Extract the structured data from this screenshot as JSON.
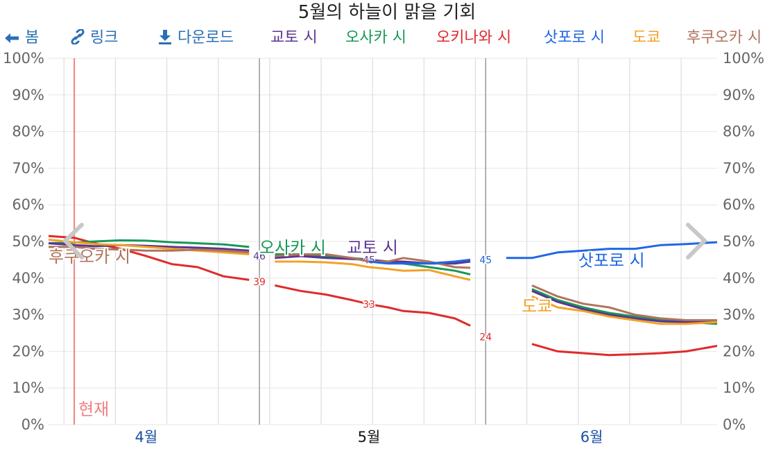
{
  "title": "5월의 하늘이 맑을 기회",
  "legend": {
    "back": "봄",
    "link": "링크",
    "download": "다운로드",
    "cities": [
      "교토 시",
      "오사카 시",
      "오키나와 시",
      "삿포로 시",
      "도쿄",
      "후쿠오카 시"
    ]
  },
  "current_label": "현재",
  "icons": {
    "back": "arrow-left-icon",
    "link": "link-icon",
    "download": "download-icon",
    "prev": "chevron-left-icon",
    "next": "chevron-right-icon"
  },
  "colors": {
    "교토 시": "#5b3592",
    "오사카 시": "#199857",
    "오키나와 시": "#e02a2a",
    "삿포로 시": "#1f66e5",
    "도쿄": "#f2a227",
    "후쿠오카 시": "#b0735c",
    "now": "#f08080"
  },
  "chart_data": {
    "type": "line",
    "title": "5월의 하늘이 맑을 기회",
    "xlim": [
      -1.9,
      11.1
    ],
    "ylim": [
      0,
      100
    ],
    "yticks": [
      "0%",
      "10%",
      "20%",
      "30%",
      "40%",
      "50%",
      "60%",
      "70%",
      "80%",
      "90%",
      "100%"
    ],
    "xticks": [
      {
        "label": "4월",
        "x": 0
      },
      {
        "label": "5월",
        "x": 4.33,
        "current": true
      },
      {
        "label": "6월",
        "x": 8.66
      }
    ],
    "weekly_grid": [
      -1.6,
      -0.6,
      0.4,
      1.4,
      2.4,
      3.4,
      4.4,
      5.4,
      6.4,
      7.4,
      8.4,
      9.4,
      10.4
    ],
    "month_bounds": [
      2.2,
      6.6
    ],
    "now_x": -1.4,
    "show_left_axis": true,
    "show_right_axis": true,
    "grid": true,
    "series": [
      {
        "name": "오키나와 시",
        "x": [
          -1.9,
          -1.4,
          -1,
          -0.5,
          0,
          0.5,
          1,
          1.5,
          2,
          2.2,
          2.5,
          3,
          3.5,
          4,
          4.33,
          4.7,
          5,
          5.5,
          6,
          6.3,
          6.6,
          7.5,
          8,
          8.5,
          9,
          9.5,
          10,
          10.5,
          11.1
        ],
        "y": [
          51.5,
          51,
          49.5,
          48,
          46,
          43.8,
          43,
          40.5,
          39.5,
          39,
          38,
          36.5,
          35.5,
          34,
          32.9,
          32,
          31,
          30.5,
          29,
          27,
          24,
          22,
          20,
          19.5,
          19,
          19.2,
          19.5,
          20,
          21.5
        ],
        "labels": [
          {
            "x": 2.2,
            "text": "39"
          },
          {
            "x": 4.33,
            "text": "33"
          },
          {
            "x": 6.6,
            "text": "24"
          }
        ]
      },
      {
        "name": "오사카 시",
        "x": [
          -1.9,
          -1.4,
          -1,
          -0.5,
          0,
          0.5,
          1,
          1.5,
          2,
          2.2,
          2.5,
          3,
          3.5,
          4,
          4.33,
          4.7,
          5,
          5.5,
          6,
          6.3,
          6.6,
          7.5,
          8,
          8.5,
          9,
          9.5,
          10,
          10.5,
          11.1
        ],
        "y": [
          49.5,
          49.7,
          50,
          50.3,
          50.2,
          49.8,
          49.5,
          49.2,
          48.5,
          47,
          46.5,
          46.5,
          46,
          45.5,
          45,
          44.5,
          44,
          43,
          42,
          41,
          41,
          37,
          34,
          32,
          30.5,
          29.5,
          28.5,
          28,
          27.5
        ]
      },
      {
        "name": "교토 시",
        "x": [
          -1.9,
          -1.4,
          -1,
          -0.5,
          0,
          0.5,
          1,
          1.5,
          2,
          2.2,
          2.5,
          3,
          3.5,
          4,
          4.33,
          4.7,
          5,
          5.5,
          6,
          6.3,
          6.6,
          7.5,
          8,
          8.5,
          9,
          9.5,
          10,
          10.5,
          11.1
        ],
        "y": [
          49.5,
          49,
          48.7,
          49,
          48.8,
          48.5,
          48.3,
          48,
          47.5,
          46,
          45.5,
          46,
          45.5,
          45.2,
          45,
          44.5,
          44.5,
          44,
          44,
          44.5,
          45,
          36.5,
          33.5,
          31.5,
          30,
          29,
          28.2,
          28,
          28
        ],
        "labels": [
          {
            "x": 2.2,
            "text": "46"
          },
          {
            "x": 4.33,
            "text": "45"
          },
          {
            "x": 6.6,
            "text": "45"
          }
        ]
      },
      {
        "name": "도쿄",
        "x": [
          -1.9,
          -1.4,
          -1,
          -0.5,
          0,
          0.5,
          1,
          1.5,
          2,
          2.2,
          2.5,
          3,
          3.5,
          4,
          4.33,
          4.7,
          5,
          5.5,
          6,
          6.3,
          6.6,
          7.5,
          8,
          8.5,
          9,
          9.5,
          10,
          10.5,
          11.1
        ],
        "y": [
          50.5,
          49.8,
          49.3,
          49,
          48.5,
          48,
          47.5,
          47,
          46.5,
          45,
          44.5,
          44.5,
          44.3,
          43.8,
          43,
          42.5,
          42,
          42.2,
          40.5,
          39.5,
          39,
          35,
          32,
          31,
          29.5,
          28.5,
          27.5,
          27.5,
          28
        ]
      },
      {
        "name": "후쿠오카 시",
        "x": [
          -1.9,
          -1.4,
          -1,
          -0.5,
          0,
          0.5,
          1,
          1.5,
          2,
          2.2,
          2.5,
          3,
          3.5,
          4,
          4.33,
          4.7,
          5,
          5.5,
          6,
          6.3,
          6.6,
          7.5,
          8,
          8.5,
          9,
          9.5,
          10,
          10.5,
          11.1
        ],
        "y": [
          48.5,
          48.5,
          48,
          47.8,
          47.5,
          47.5,
          47.8,
          47.5,
          47,
          46.5,
          46,
          46.5,
          46.5,
          45.5,
          44.5,
          44.5,
          45.5,
          44.5,
          43,
          42.8,
          42.5,
          38,
          35,
          33,
          32,
          30,
          29,
          28.5,
          28.5
        ]
      },
      {
        "name": "삿포로 시",
        "x": [
          4.33,
          4.7,
          5,
          5.5,
          6,
          6.3,
          6.6,
          7,
          7.5,
          8,
          8.5,
          9,
          9.5,
          10,
          10.5,
          11.1
        ],
        "y": [
          44.5,
          44,
          44,
          44,
          44.5,
          45,
          45,
          45.5,
          45.5,
          47,
          47.5,
          48,
          48,
          49,
          49.3,
          49.8
        ],
        "labels": [
          {
            "x": 6.6,
            "text": "45"
          }
        ]
      },
      {
        "name": "오키나와 시_pre",
        "x": [],
        "y": []
      }
    ],
    "line_labels": [
      {
        "series": "후쿠오카 시",
        "text": "후쿠오카 시",
        "x": -1.9,
        "y": 46
      },
      {
        "series": "오사카 시",
        "text": "오사카 시",
        "x": 2.2,
        "y": 48.5
      },
      {
        "series": "교토 시",
        "text": "교토 시",
        "x": 3.9,
        "y": 48.5
      },
      {
        "series": "삿포로 시",
        "text": "삿포로 시",
        "x": 8.4,
        "y": 45
      },
      {
        "series": "도쿄",
        "text": "도쿄",
        "x": 7.3,
        "y": 32.5
      }
    ]
  }
}
